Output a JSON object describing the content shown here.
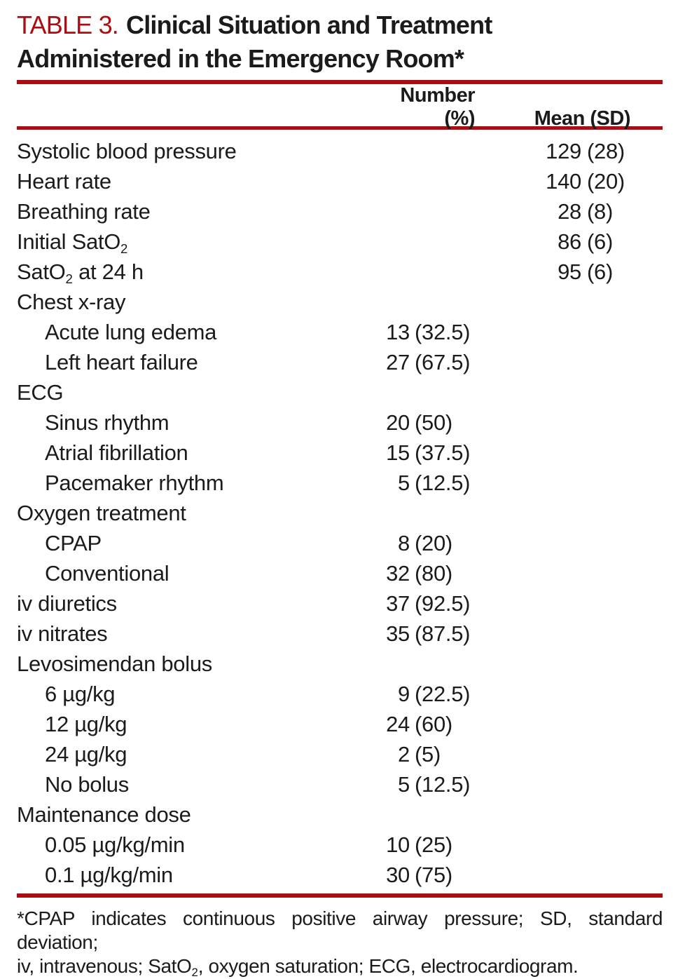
{
  "title": {
    "label": "TABLE 3.",
    "line1": "Clinical Situation and Treatment",
    "line2": "Administered in the Emergency Room*"
  },
  "columns": {
    "number": "Number (%)",
    "mean": "Mean (SD)"
  },
  "rows": [
    {
      "pre": "Systolic blood pressure",
      "sub": "",
      "post": "",
      "num": "",
      "num_pct": "",
      "mean": "129",
      "mean_sd": "(28)"
    },
    {
      "pre": "Heart rate",
      "sub": "",
      "post": "",
      "num": "",
      "num_pct": "",
      "mean": "140",
      "mean_sd": "(20)"
    },
    {
      "pre": "Breathing rate",
      "sub": "",
      "post": "",
      "num": "",
      "num_pct": "",
      "mean": "28",
      "mean_sd": "(8)"
    },
    {
      "pre": "Initial SatO",
      "sub": "2",
      "post": "",
      "num": "",
      "num_pct": "",
      "mean": "86",
      "mean_sd": "(6)"
    },
    {
      "pre": "SatO",
      "sub": "2",
      "post": " at 24 h",
      "num": "",
      "num_pct": "",
      "mean": "95",
      "mean_sd": "(6)"
    },
    {
      "pre": "Chest x-ray",
      "sub": "",
      "post": "",
      "num": "",
      "num_pct": "",
      "mean": "",
      "mean_sd": ""
    },
    {
      "pre": "Acute lung edema",
      "sub": "",
      "post": "",
      "num": "13",
      "num_pct": "(32.5)",
      "mean": "",
      "mean_sd": ""
    },
    {
      "pre": "Left heart failure",
      "sub": "",
      "post": "",
      "num": "27",
      "num_pct": "(67.5)",
      "mean": "",
      "mean_sd": ""
    },
    {
      "pre": "ECG",
      "sub": "",
      "post": "",
      "num": "",
      "num_pct": "",
      "mean": "",
      "mean_sd": ""
    },
    {
      "pre": "Sinus rhythm",
      "sub": "",
      "post": "",
      "num": "20",
      "num_pct": "(50)",
      "mean": "",
      "mean_sd": ""
    },
    {
      "pre": "Atrial fibrillation",
      "sub": "",
      "post": "",
      "num": "15",
      "num_pct": "(37.5)",
      "mean": "",
      "mean_sd": ""
    },
    {
      "pre": "Pacemaker rhythm",
      "sub": "",
      "post": "",
      "num": "5",
      "num_pct": "(12.5)",
      "mean": "",
      "mean_sd": ""
    },
    {
      "pre": "Oxygen treatment",
      "sub": "",
      "post": "",
      "num": "",
      "num_pct": "",
      "mean": "",
      "mean_sd": ""
    },
    {
      "pre": "CPAP",
      "sub": "",
      "post": "",
      "num": "8",
      "num_pct": "(20)",
      "mean": "",
      "mean_sd": ""
    },
    {
      "pre": "Conventional",
      "sub": "",
      "post": "",
      "num": "32",
      "num_pct": "(80)",
      "mean": "",
      "mean_sd": ""
    },
    {
      "pre": "iv diuretics",
      "sub": "",
      "post": "",
      "num": "37",
      "num_pct": "(92.5)",
      "mean": "",
      "mean_sd": ""
    },
    {
      "pre": "iv nitrates",
      "sub": "",
      "post": "",
      "num": "35",
      "num_pct": "(87.5)",
      "mean": "",
      "mean_sd": ""
    },
    {
      "pre": "Levosimendan bolus",
      "sub": "",
      "post": "",
      "num": "",
      "num_pct": "",
      "mean": "",
      "mean_sd": ""
    },
    {
      "pre": "6 µg/kg",
      "sub": "",
      "post": "",
      "num": "9",
      "num_pct": "(22.5)",
      "mean": "",
      "mean_sd": ""
    },
    {
      "pre": "12 µg/kg",
      "sub": "",
      "post": "",
      "num": "24",
      "num_pct": "(60)",
      "mean": "",
      "mean_sd": ""
    },
    {
      "pre": "24 µg/kg",
      "sub": "",
      "post": "",
      "num": "2",
      "num_pct": "(5)",
      "mean": "",
      "mean_sd": ""
    },
    {
      "pre": "No bolus",
      "sub": "",
      "post": "",
      "num": "5",
      "num_pct": "(12.5)",
      "mean": "",
      "mean_sd": ""
    },
    {
      "pre": "Maintenance dose",
      "sub": "",
      "post": "",
      "num": "",
      "num_pct": "",
      "mean": "",
      "mean_sd": ""
    },
    {
      "pre": "0.05 µg/kg/min",
      "sub": "",
      "post": "",
      "num": "10",
      "num_pct": "(25)",
      "mean": "",
      "mean_sd": ""
    },
    {
      "pre": "0.1 µg/kg/min",
      "sub": "",
      "post": "",
      "num": "30",
      "num_pct": "(75)",
      "mean": "",
      "mean_sd": ""
    }
  ],
  "footnote": {
    "line1": "*CPAP indicates continuous positive airway pressure; SD, standard deviation;",
    "line2_pre": "iv, intravenous; SatO",
    "line2_sub": "2",
    "line2_post": ", oxygen saturation; ECG, electrocardiogram."
  },
  "colors": {
    "accent_red": "#AB0E12",
    "text": "#1b1b1b",
    "background": "#ffffff"
  }
}
